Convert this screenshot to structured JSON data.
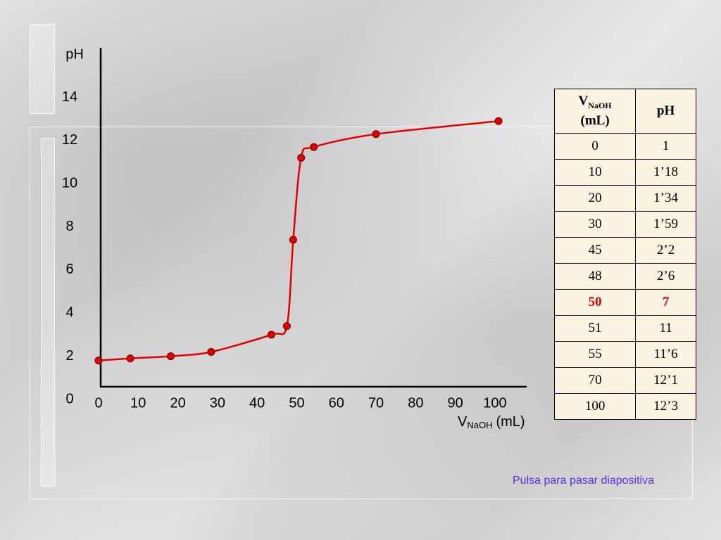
{
  "chart_data": {
    "type": "line",
    "y_label": "pH",
    "x_label": {
      "main": "V",
      "sub": "NaOH",
      "unit": "(mL)"
    },
    "x": [
      0,
      8,
      18.2,
      28.4,
      43.6,
      47.5,
      49.1,
      51.1,
      54.3,
      70,
      100.9
    ],
    "series": [
      {
        "color": "#e00000",
        "values": [
          1.8,
          1.9,
          2.0,
          2.2,
          3.0,
          3.4,
          7.4,
          11.2,
          11.7,
          12.3,
          12.9
        ]
      }
    ],
    "xlim": [
      0,
      108
    ],
    "ylim": [
      0.6,
      16.3
    ],
    "xticks": [
      0,
      10,
      20,
      30,
      40,
      50,
      60,
      70,
      80,
      90,
      100
    ],
    "yticks": [
      0,
      2,
      4,
      6,
      8,
      10,
      12,
      14
    ]
  },
  "table": {
    "header": [
      {
        "main": "V",
        "sub": "NaOH",
        "unit": "(mL)"
      },
      "pH"
    ],
    "rows": [
      [
        "0",
        "1"
      ],
      [
        "10",
        "1’18"
      ],
      [
        "20",
        "1’34"
      ],
      [
        "30",
        "1’59"
      ],
      [
        "45",
        "2’2"
      ],
      [
        "48",
        "2’6"
      ],
      [
        "50",
        "7"
      ],
      [
        "51",
        "11"
      ],
      [
        "55",
        "11’6"
      ],
      [
        "70",
        "12’1"
      ],
      [
        "100",
        "12’3"
      ]
    ],
    "highlight": {
      "row": 6,
      "color": "#e00000"
    }
  },
  "footer": "Pulsa para pasar diapositiva"
}
